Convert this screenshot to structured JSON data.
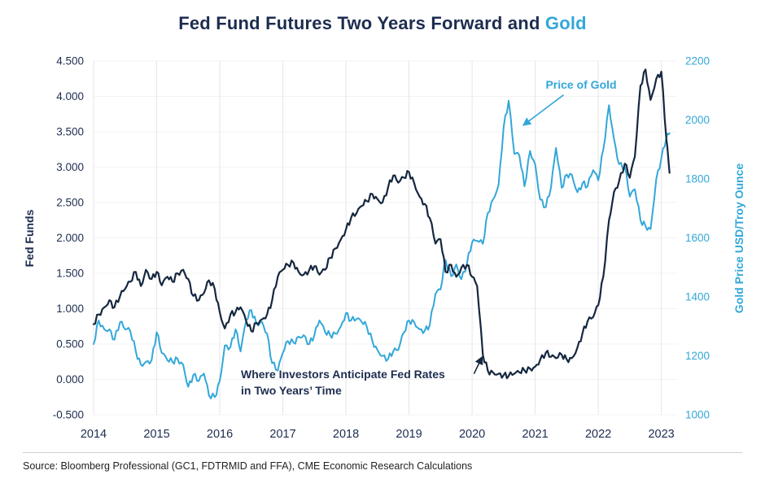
{
  "title": {
    "main": "Fed Fund Futures Two Years Forward and ",
    "highlight": "Gold"
  },
  "source": "Source: Bloomberg Professional (GC1, FDTRMID and FFA), CME Economic Research Calculations",
  "colors": {
    "navy": "#152740",
    "navy_text": "#1d2d50",
    "blue": "#33a7d9",
    "grid": "#e5e5e5",
    "grid_h": "#f3f3f3"
  },
  "chart_data": {
    "type": "line",
    "title": "Fed Fund Futures Two Years Forward and Gold",
    "x_ticks": [
      "2014",
      "2015",
      "2016",
      "2017",
      "2018",
      "2019",
      "2020",
      "2021",
      "2022",
      "2023"
    ],
    "left_axis": {
      "label": "Fed Funds",
      "min": -0.5,
      "max": 4.5,
      "ticks": [
        "4.500",
        "4.000",
        "3.500",
        "3.000",
        "2.500",
        "2.000",
        "1.500",
        "1.000",
        "0.500",
        "0.000",
        "-0.500"
      ]
    },
    "right_axis": {
      "label": "Gold Price USD/Troy Ounce",
      "min": 1000,
      "max": 2200,
      "ticks": [
        "2200",
        "2000",
        "1800",
        "1600",
        "1400",
        "1200",
        "1000"
      ]
    },
    "annotations": [
      {
        "id": "gold",
        "text": "Price of Gold",
        "axis": "right",
        "arrow": {
          "from": [
            2021.45,
            2085
          ],
          "to": [
            2020.83,
            1985
          ]
        }
      },
      {
        "id": "fed",
        "line1": "Where Investors Anticipate Fed Rates",
        "line2": "in Two Years’ Time",
        "axis": "left",
        "arrow": {
          "from": [
            2020.03,
            0.08
          ],
          "to": [
            2020.15,
            0.3
          ]
        }
      }
    ],
    "series": [
      {
        "name": "Price of Gold",
        "axis": "right",
        "color": "#33a7d9",
        "width": 2,
        "points": [
          [
            2014.0,
            1240
          ],
          [
            2014.08,
            1320
          ],
          [
            2014.17,
            1290
          ],
          [
            2014.25,
            1290
          ],
          [
            2014.33,
            1255
          ],
          [
            2014.42,
            1315
          ],
          [
            2014.5,
            1290
          ],
          [
            2014.58,
            1285
          ],
          [
            2014.67,
            1215
          ],
          [
            2014.75,
            1170
          ],
          [
            2014.83,
            1180
          ],
          [
            2014.92,
            1185
          ],
          [
            2015.0,
            1280
          ],
          [
            2015.08,
            1210
          ],
          [
            2015.17,
            1185
          ],
          [
            2015.25,
            1180
          ],
          [
            2015.33,
            1190
          ],
          [
            2015.42,
            1170
          ],
          [
            2015.5,
            1095
          ],
          [
            2015.58,
            1135
          ],
          [
            2015.67,
            1115
          ],
          [
            2015.75,
            1140
          ],
          [
            2015.83,
            1065
          ],
          [
            2015.92,
            1060
          ],
          [
            2016.0,
            1115
          ],
          [
            2016.08,
            1235
          ],
          [
            2016.17,
            1230
          ],
          [
            2016.25,
            1290
          ],
          [
            2016.33,
            1215
          ],
          [
            2016.42,
            1320
          ],
          [
            2016.5,
            1355
          ],
          [
            2016.58,
            1310
          ],
          [
            2016.67,
            1315
          ],
          [
            2016.75,
            1275
          ],
          [
            2016.83,
            1175
          ],
          [
            2016.92,
            1150
          ],
          [
            2017.0,
            1210
          ],
          [
            2017.08,
            1250
          ],
          [
            2017.17,
            1245
          ],
          [
            2017.25,
            1265
          ],
          [
            2017.33,
            1270
          ],
          [
            2017.42,
            1240
          ],
          [
            2017.5,
            1270
          ],
          [
            2017.58,
            1320
          ],
          [
            2017.67,
            1280
          ],
          [
            2017.75,
            1270
          ],
          [
            2017.83,
            1275
          ],
          [
            2017.92,
            1300
          ],
          [
            2018.0,
            1345
          ],
          [
            2018.08,
            1320
          ],
          [
            2018.17,
            1325
          ],
          [
            2018.25,
            1315
          ],
          [
            2018.33,
            1300
          ],
          [
            2018.42,
            1250
          ],
          [
            2018.5,
            1220
          ],
          [
            2018.58,
            1200
          ],
          [
            2018.67,
            1190
          ],
          [
            2018.75,
            1215
          ],
          [
            2018.83,
            1220
          ],
          [
            2018.92,
            1280
          ],
          [
            2019.0,
            1320
          ],
          [
            2019.08,
            1315
          ],
          [
            2019.17,
            1290
          ],
          [
            2019.25,
            1285
          ],
          [
            2019.33,
            1305
          ],
          [
            2019.42,
            1410
          ],
          [
            2019.5,
            1425
          ],
          [
            2019.58,
            1525
          ],
          [
            2019.67,
            1470
          ],
          [
            2019.75,
            1510
          ],
          [
            2019.83,
            1460
          ],
          [
            2019.92,
            1515
          ],
          [
            2020.0,
            1585
          ],
          [
            2020.08,
            1590
          ],
          [
            2020.17,
            1580
          ],
          [
            2020.25,
            1685
          ],
          [
            2020.33,
            1730
          ],
          [
            2020.42,
            1780
          ],
          [
            2020.5,
            1975
          ],
          [
            2020.58,
            2065
          ],
          [
            2020.67,
            1885
          ],
          [
            2020.75,
            1880
          ],
          [
            2020.83,
            1775
          ],
          [
            2020.92,
            1895
          ],
          [
            2021.0,
            1850
          ],
          [
            2021.08,
            1730
          ],
          [
            2021.17,
            1705
          ],
          [
            2021.25,
            1770
          ],
          [
            2021.33,
            1905
          ],
          [
            2021.42,
            1770
          ],
          [
            2021.5,
            1815
          ],
          [
            2021.58,
            1815
          ],
          [
            2021.67,
            1755
          ],
          [
            2021.75,
            1785
          ],
          [
            2021.83,
            1775
          ],
          [
            2021.92,
            1830
          ],
          [
            2022.0,
            1795
          ],
          [
            2022.08,
            1900
          ],
          [
            2022.17,
            2050
          ],
          [
            2022.25,
            1935
          ],
          [
            2022.33,
            1850
          ],
          [
            2022.42,
            1840
          ],
          [
            2022.5,
            1740
          ],
          [
            2022.58,
            1765
          ],
          [
            2022.67,
            1660
          ],
          [
            2022.75,
            1640
          ],
          [
            2022.83,
            1630
          ],
          [
            2022.92,
            1800
          ],
          [
            2023.0,
            1870
          ],
          [
            2023.08,
            1940
          ],
          [
            2023.13,
            1955
          ]
        ]
      },
      {
        "name": "Fed Fund Futures Two Years Forward",
        "axis": "left",
        "color": "#152740",
        "width": 2.2,
        "points": [
          [
            2014.0,
            0.78
          ],
          [
            2014.08,
            0.92
          ],
          [
            2014.17,
            1.02
          ],
          [
            2014.25,
            1.12
          ],
          [
            2014.33,
            1.02
          ],
          [
            2014.42,
            1.18
          ],
          [
            2014.5,
            1.28
          ],
          [
            2014.58,
            1.38
          ],
          [
            2014.67,
            1.52
          ],
          [
            2014.75,
            1.32
          ],
          [
            2014.83,
            1.55
          ],
          [
            2014.92,
            1.42
          ],
          [
            2015.0,
            1.52
          ],
          [
            2015.08,
            1.33
          ],
          [
            2015.17,
            1.45
          ],
          [
            2015.25,
            1.38
          ],
          [
            2015.33,
            1.5
          ],
          [
            2015.42,
            1.55
          ],
          [
            2015.5,
            1.42
          ],
          [
            2015.58,
            1.18
          ],
          [
            2015.67,
            1.12
          ],
          [
            2015.75,
            1.22
          ],
          [
            2015.83,
            1.4
          ],
          [
            2015.92,
            1.28
          ],
          [
            2016.0,
            0.95
          ],
          [
            2016.08,
            0.72
          ],
          [
            2016.17,
            0.92
          ],
          [
            2016.25,
            0.95
          ],
          [
            2016.33,
            1.02
          ],
          [
            2016.42,
            0.82
          ],
          [
            2016.5,
            0.68
          ],
          [
            2016.58,
            0.8
          ],
          [
            2016.67,
            0.85
          ],
          [
            2016.75,
            0.92
          ],
          [
            2016.83,
            1.12
          ],
          [
            2016.92,
            1.45
          ],
          [
            2017.0,
            1.55
          ],
          [
            2017.08,
            1.62
          ],
          [
            2017.17,
            1.65
          ],
          [
            2017.25,
            1.52
          ],
          [
            2017.33,
            1.48
          ],
          [
            2017.42,
            1.55
          ],
          [
            2017.5,
            1.6
          ],
          [
            2017.58,
            1.48
          ],
          [
            2017.67,
            1.55
          ],
          [
            2017.75,
            1.72
          ],
          [
            2017.83,
            1.85
          ],
          [
            2017.92,
            1.98
          ],
          [
            2018.0,
            2.12
          ],
          [
            2018.08,
            2.28
          ],
          [
            2018.17,
            2.35
          ],
          [
            2018.25,
            2.45
          ],
          [
            2018.33,
            2.52
          ],
          [
            2018.42,
            2.62
          ],
          [
            2018.5,
            2.55
          ],
          [
            2018.58,
            2.5
          ],
          [
            2018.67,
            2.72
          ],
          [
            2018.75,
            2.88
          ],
          [
            2018.83,
            2.78
          ],
          [
            2018.92,
            2.85
          ],
          [
            2019.0,
            2.93
          ],
          [
            2019.08,
            2.78
          ],
          [
            2019.17,
            2.58
          ],
          [
            2019.25,
            2.48
          ],
          [
            2019.33,
            2.28
          ],
          [
            2019.42,
            1.92
          ],
          [
            2019.5,
            1.98
          ],
          [
            2019.58,
            1.52
          ],
          [
            2019.67,
            1.62
          ],
          [
            2019.75,
            1.45
          ],
          [
            2019.83,
            1.58
          ],
          [
            2019.92,
            1.62
          ],
          [
            2020.0,
            1.45
          ],
          [
            2020.08,
            1.32
          ],
          [
            2020.17,
            0.35
          ],
          [
            2020.25,
            0.12
          ],
          [
            2020.33,
            0.1
          ],
          [
            2020.42,
            0.08
          ],
          [
            2020.5,
            0.06
          ],
          [
            2020.58,
            0.05
          ],
          [
            2020.67,
            0.08
          ],
          [
            2020.75,
            0.1
          ],
          [
            2020.83,
            0.13
          ],
          [
            2020.92,
            0.15
          ],
          [
            2021.0,
            0.18
          ],
          [
            2021.08,
            0.28
          ],
          [
            2021.17,
            0.38
          ],
          [
            2021.25,
            0.32
          ],
          [
            2021.33,
            0.3
          ],
          [
            2021.42,
            0.35
          ],
          [
            2021.5,
            0.28
          ],
          [
            2021.58,
            0.3
          ],
          [
            2021.67,
            0.45
          ],
          [
            2021.75,
            0.65
          ],
          [
            2021.83,
            0.82
          ],
          [
            2021.92,
            0.88
          ],
          [
            2022.0,
            1.05
          ],
          [
            2022.08,
            1.45
          ],
          [
            2022.17,
            2.25
          ],
          [
            2022.25,
            2.65
          ],
          [
            2022.33,
            2.8
          ],
          [
            2022.42,
            3.05
          ],
          [
            2022.5,
            2.85
          ],
          [
            2022.58,
            3.15
          ],
          [
            2022.67,
            4.15
          ],
          [
            2022.75,
            4.38
          ],
          [
            2022.83,
            3.95
          ],
          [
            2022.92,
            4.25
          ],
          [
            2023.0,
            4.35
          ],
          [
            2023.08,
            3.4
          ],
          [
            2023.13,
            2.92
          ]
        ]
      }
    ]
  }
}
